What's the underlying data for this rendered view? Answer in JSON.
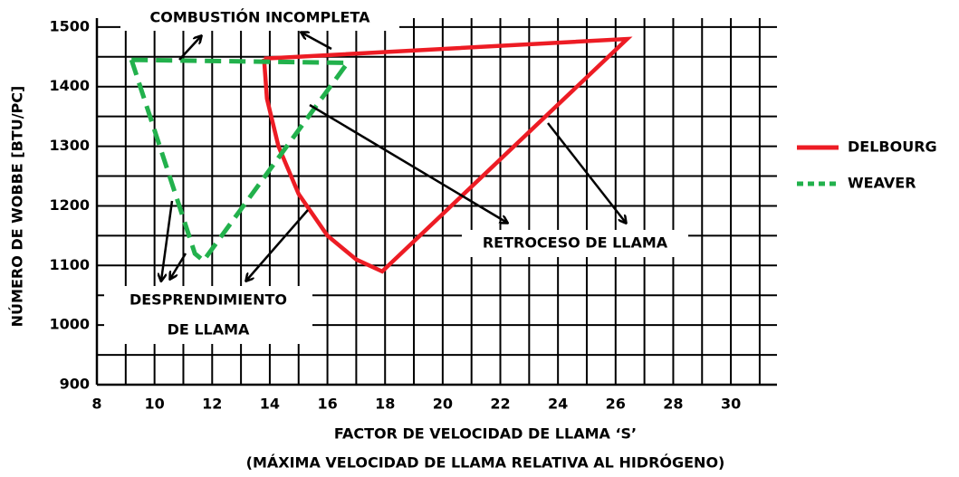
{
  "chart_data": {
    "type": "line",
    "xlabel": [
      "FACTOR DE VELOCIDAD DE LLAMA ‘S’",
      "(MÁXIMA VELOCIDAD DE LLAMA RELATIVA AL HIDRÓGENO)"
    ],
    "ylabel": "NÚMERO DE WOBBE [BTU/PC]",
    "xlim": [
      8,
      31.6
    ],
    "ylim": [
      900,
      1515
    ],
    "xticks": [
      8,
      10,
      12,
      14,
      16,
      18,
      20,
      22,
      24,
      26,
      28,
      30
    ],
    "yticks": [
      900,
      1000,
      1100,
      1200,
      1300,
      1400,
      1500
    ],
    "minor_xticks": [
      9,
      11,
      13,
      15,
      17,
      19,
      21,
      23,
      25,
      27,
      29,
      31
    ],
    "minor_yticks": [
      950,
      1050,
      1150,
      1250,
      1350,
      1450
    ],
    "grid": true,
    "legend": "right",
    "series": [
      {
        "name": "DELBOURG",
        "color": "#ed1c24",
        "style": "solid",
        "x": [
          13.8,
          26.4,
          17.9,
          17.0,
          16.0,
          15.0,
          14.3,
          13.9,
          13.8
        ],
        "values": [
          1447,
          1480,
          1090,
          1110,
          1150,
          1220,
          1300,
          1380,
          1447
        ]
      },
      {
        "name": "WEAVER",
        "color": "#22b14c",
        "style": "dashed",
        "x": [
          9.2,
          16.7,
          11.7,
          11.4,
          9.2
        ],
        "values": [
          1445,
          1440,
          1108,
          1120,
          1445
        ]
      }
    ],
    "annotations": [
      "COMBUSTIÓN INCOMPLETA",
      "DESPRENDIMIENTO",
      "DE LLAMA",
      "RETROCESO DE LLAMA"
    ]
  }
}
